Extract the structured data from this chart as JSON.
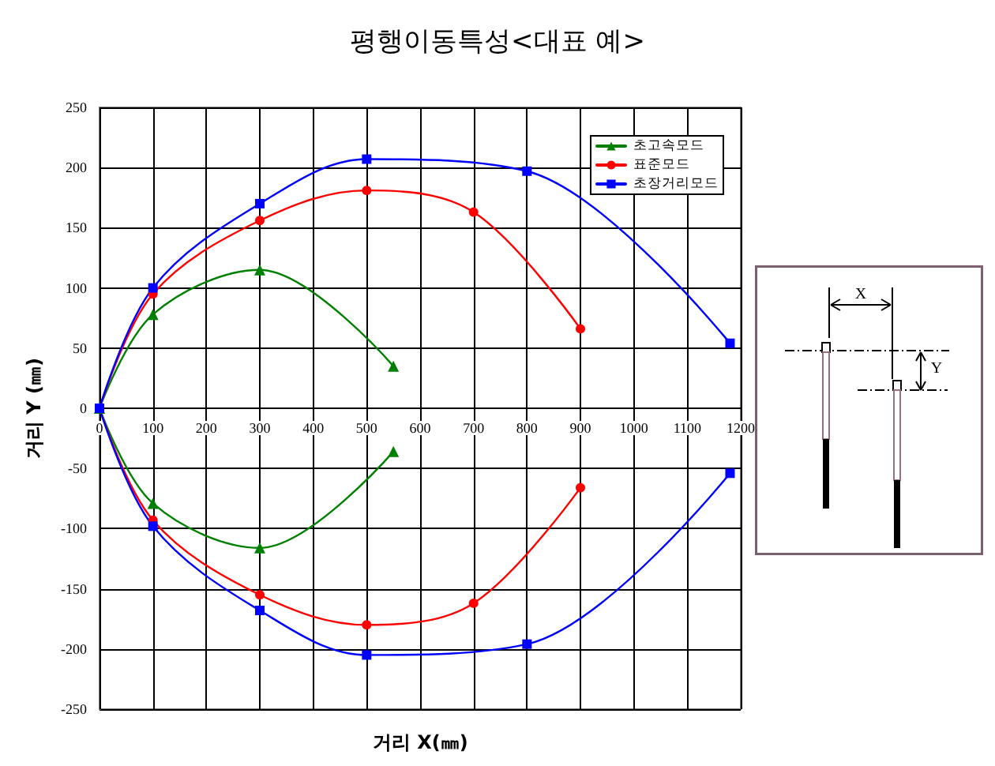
{
  "chart_data": {
    "type": "line",
    "title": "평행이동특성<대표 예>",
    "xlabel": "거리 X(㎜)",
    "ylabel": "거리 Y (㎜)",
    "annotations": [
      "X",
      "Y"
    ],
    "xlim": [
      0,
      1200
    ],
    "xticks": [
      0,
      100,
      200,
      300,
      400,
      500,
      600,
      700,
      800,
      900,
      1000,
      1100,
      1200
    ],
    "ylim": [
      -250,
      250
    ],
    "yticks": [
      -250,
      -200,
      -150,
      -100,
      -50,
      0,
      50,
      100,
      150,
      200,
      250
    ],
    "grid": true,
    "legend": "top right",
    "line_style": "solid",
    "series": [
      {
        "name": "초고속모드",
        "color": "#008000",
        "marker": "triangle",
        "x": [
          0,
          100,
          300,
          550
        ],
        "values": [
          0,
          78,
          115,
          35
        ]
      },
      {
        "name": "표준모드",
        "color": "#ff0000",
        "marker": "circle",
        "x": [
          0,
          100,
          300,
          500,
          700,
          900
        ],
        "values": [
          0,
          95,
          156,
          181,
          163,
          66
        ]
      },
      {
        "name": "초장거리모드",
        "color": "#0000ff",
        "marker": "square",
        "x": [
          0,
          100,
          300,
          500,
          800,
          1180
        ],
        "values": [
          0,
          100,
          170,
          207,
          197,
          54
        ]
      },
      {
        "color": "#008000",
        "marker": "triangle",
        "x": [
          0,
          100,
          300,
          550
        ],
        "values": [
          0,
          -79,
          -116,
          -36
        ]
      },
      {
        "color": "#ff0000",
        "marker": "circle",
        "x": [
          0,
          100,
          300,
          500,
          700,
          900
        ],
        "values": [
          0,
          -93,
          -155,
          -180,
          -162,
          -66
        ]
      },
      {
        "color": "#0000ff",
        "marker": "square",
        "x": [
          0,
          100,
          300,
          500,
          800,
          1180
        ],
        "values": [
          0,
          -98,
          -168,
          -205,
          -196,
          -54
        ]
      }
    ]
  }
}
